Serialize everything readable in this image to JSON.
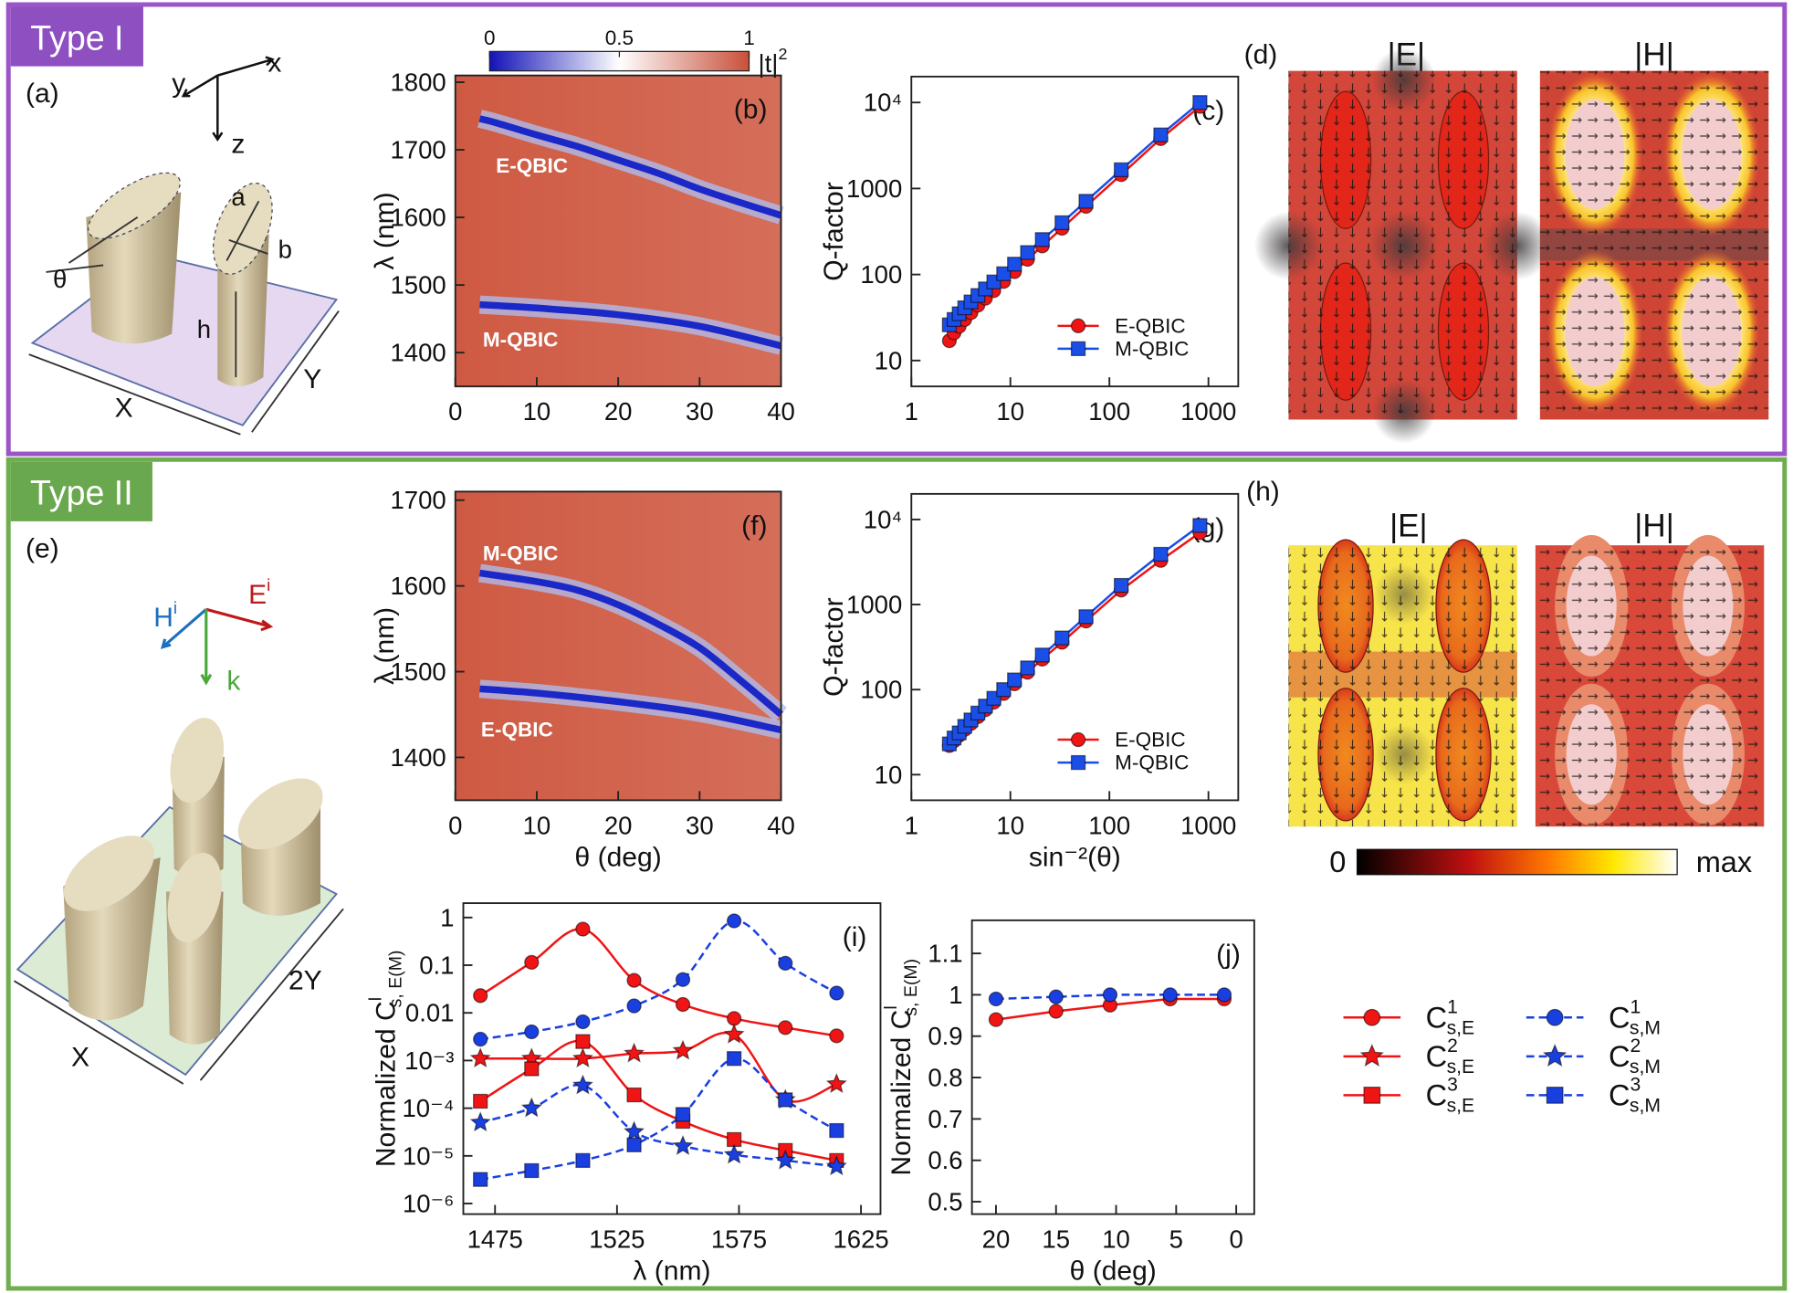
{
  "sections": [
    {
      "tag": "Type I"
    },
    {
      "tag": "Type II"
    }
  ],
  "schematics": {
    "a": {
      "label": "(a)",
      "axes": [
        "x",
        "y",
        "z"
      ],
      "dims": [
        "a",
        "b",
        "θ",
        "h",
        "X",
        "Y"
      ]
    },
    "e": {
      "label": "(e)",
      "field": [
        {
          "text": "H",
          "sup": "i"
        },
        {
          "text": "E",
          "sup": "i"
        },
        {
          "text": "k"
        }
      ],
      "dims": [
        "X",
        "2Y"
      ]
    }
  },
  "field_maps": [
    {
      "label": "(d)",
      "titles": [
        "|E|",
        "|H|"
      ]
    },
    {
      "label": "(h)",
      "titles": [
        "|E|",
        "|H|"
      ]
    }
  ],
  "field_colorbar": {
    "min_label": "0",
    "max_label": "max"
  },
  "chart_data": [
    {
      "type": "heatmap",
      "label": "(b)",
      "ylabel": "λ (nm)",
      "xlim": [
        0,
        40
      ],
      "xticks": [
        0,
        10,
        20,
        30,
        40
      ],
      "ylim": [
        1350,
        1810
      ],
      "yticks": [
        1400,
        1500,
        1600,
        1700,
        1800
      ],
      "background_color": "#cf5a43",
      "band_color": "#1b28c8",
      "series": [
        {
          "name": "E-QBIC",
          "x": [
            3,
            5,
            10,
            15,
            20,
            25,
            30,
            35,
            40
          ],
          "values": [
            1746,
            1740,
            1722,
            1705,
            1685,
            1665,
            1642,
            1622,
            1603
          ]
        },
        {
          "name": "M-QBIC",
          "x": [
            3,
            10,
            20,
            30,
            40
          ],
          "values": [
            1471,
            1466,
            1456,
            1439,
            1410
          ]
        }
      ],
      "colorbar": {
        "clim": [
          0,
          1
        ],
        "ticks": [
          0,
          0.5,
          1
        ],
        "label": "|t|",
        "label_sup": "2",
        "colors": [
          "#1212b8",
          "#ffffff",
          "#c8503a"
        ]
      }
    },
    {
      "type": "line",
      "label": "(c)",
      "ylabel": "Q-factor",
      "xscale": "log",
      "yscale": "log",
      "xlim": [
        1,
        2000
      ],
      "xticks": [
        1,
        10,
        100,
        1000
      ],
      "ylim": [
        5,
        20000
      ],
      "yticks": [
        10,
        100,
        1000,
        {
          "value": 10000,
          "label": "10⁴"
        }
      ],
      "legend": "lower right",
      "x": [
        2.42,
        2.7,
        3.04,
        3.46,
        4,
        4.7,
        5.6,
        6.8,
        8.55,
        11,
        14.9,
        21,
        33.2,
        58,
        131.6,
        330,
        821
      ],
      "series": [
        {
          "name": "E-QBIC",
          "color": "#f01414",
          "marker": "circle",
          "values": [
            17,
            21,
            25,
            30,
            36,
            44,
            53,
            65,
            83,
            108,
            150,
            215,
            345,
            620,
            1450,
            3800,
            9000
          ]
        },
        {
          "name": "M-QBIC",
          "color": "#1a4ee6",
          "marker": "square",
          "values": [
            26,
            30,
            35,
            41,
            48,
            57,
            68,
            82,
            102,
            132,
            180,
            255,
            400,
            710,
            1650,
            4200,
            10000
          ]
        }
      ]
    },
    {
      "type": "heatmap",
      "label": "(f)",
      "ylabel": "λ (nm)",
      "xlabel": "θ (deg)",
      "xlim": [
        0,
        40
      ],
      "xticks": [
        0,
        10,
        20,
        30,
        40
      ],
      "ylim": [
        1350,
        1710
      ],
      "yticks": [
        1400,
        1500,
        1600,
        1700
      ],
      "background_color": "#cf5a43",
      "band_color": "#1b28c8",
      "series": [
        {
          "name": "M-QBIC",
          "x": [
            3,
            10,
            15,
            20,
            25,
            30,
            35,
            40
          ],
          "values": [
            1615,
            1605,
            1595,
            1578,
            1555,
            1528,
            1490,
            1450
          ]
        },
        {
          "name": "E-QBIC",
          "x": [
            3,
            10,
            20,
            30,
            40
          ],
          "values": [
            1480,
            1475,
            1465,
            1452,
            1432
          ]
        }
      ]
    },
    {
      "type": "line",
      "label": "(g)",
      "ylabel": "Q-factor",
      "xlabel": "sin⁻²(θ)",
      "xscale": "log",
      "yscale": "log",
      "xlim": [
        1,
        2000
      ],
      "xticks": [
        1,
        10,
        100,
        1000
      ],
      "ylim": [
        5,
        20000
      ],
      "yticks": [
        10,
        100,
        1000,
        {
          "value": 10000,
          "label": "10⁴"
        }
      ],
      "legend": "lower right",
      "x": [
        2.42,
        2.7,
        3.04,
        3.46,
        4,
        4.7,
        5.6,
        6.8,
        8.55,
        11,
        14.9,
        21,
        33.2,
        58,
        131.6,
        330,
        821
      ],
      "series": [
        {
          "name": "E-QBIC",
          "color": "#f01414",
          "marker": "circle",
          "values": [
            22,
            25,
            29,
            34,
            40,
            48,
            58,
            71,
            90,
            117,
            160,
            228,
            360,
            640,
            1480,
            3300,
            7000
          ]
        },
        {
          "name": "M-QBIC",
          "color": "#1a4ee6",
          "marker": "square",
          "values": [
            23,
            27,
            31,
            37,
            44,
            53,
            64,
            79,
            100,
            130,
            180,
            255,
            405,
            720,
            1680,
            3900,
            8500
          ]
        }
      ]
    },
    {
      "type": "line",
      "label": "(i)",
      "xlabel": "λ (nm)",
      "ylabel": "Normalized C",
      "ylabel_sup": "l",
      "ylabel_sub": "s, E(M)",
      "yscale": "log",
      "smooth": true,
      "xlim": [
        1462,
        1633
      ],
      "xticks": [
        1475,
        1525,
        1575,
        1625
      ],
      "ylim": [
        6e-07,
        2
      ],
      "yticks": [
        1,
        0.1,
        0.01,
        {
          "value": 0.001,
          "label": "10⁻³"
        },
        {
          "value": 0.0001,
          "label": "10⁻⁴"
        },
        {
          "value": 1e-05,
          "label": "10⁻⁵"
        },
        {
          "value": 1e-06,
          "label": "10⁻⁶"
        }
      ],
      "legend": "outside right",
      "x": [
        1469,
        1490,
        1511,
        1532,
        1552,
        1573,
        1594,
        1615
      ],
      "series": [
        {
          "name": "C",
          "sup": "1",
          "sub": "s,E",
          "color": "#f01414",
          "marker": "circle",
          "dash": false,
          "values": [
            0.023,
            0.115,
            0.57,
            0.048,
            0.015,
            0.0076,
            0.0049,
            0.0033
          ]
        },
        {
          "name": "C",
          "sup": "2",
          "sub": "s,E",
          "color": "#f01414",
          "marker": "star",
          "dash": false,
          "values": [
            0.0011,
            0.0011,
            0.0011,
            0.0014,
            0.0016,
            0.0035,
            0.00015,
            0.00032
          ]
        },
        {
          "name": "C",
          "sup": "3",
          "sub": "s,E",
          "color": "#f01414",
          "marker": "square",
          "dash": false,
          "values": [
            0.00014,
            0.00067,
            0.0025,
            0.00019,
            5.3e-05,
            2.2e-05,
            1.3e-05,
            8e-06
          ]
        },
        {
          "name": "C",
          "sup": "1",
          "sub": "s,M",
          "color": "#1a3fe0",
          "marker": "circle",
          "dash": true,
          "values": [
            0.0028,
            0.004,
            0.0065,
            0.014,
            0.05,
            0.85,
            0.11,
            0.026
          ]
        },
        {
          "name": "C",
          "sup": "2",
          "sub": "s,M",
          "color": "#1a3fe0",
          "marker": "star",
          "dash": true,
          "values": [
            5e-05,
            0.0001,
            0.0003,
            3.2e-05,
            1.6e-05,
            1.05e-05,
            8e-06,
            6e-06
          ]
        },
        {
          "name": "C",
          "sup": "3",
          "sub": "s,M",
          "color": "#1a3fe0",
          "marker": "square",
          "dash": true,
          "values": [
            3.2e-06,
            4.9e-06,
            8e-06,
            1.7e-05,
            7.4e-05,
            0.0011,
            0.00015,
            3.4e-05
          ]
        }
      ]
    },
    {
      "type": "line",
      "label": "(j)",
      "xlabel": "θ (deg)",
      "ylabel": "Normalized C",
      "ylabel_sup": "l",
      "ylabel_sub": "s, E(M)",
      "xlim": [
        22,
        -1.5
      ],
      "xticks": [
        20,
        15,
        10,
        5,
        0
      ],
      "ylim": [
        0.47,
        1.18
      ],
      "yticks": [
        0.5,
        0.6,
        0.7,
        0.8,
        0.9,
        1,
        1.1
      ],
      "x": [
        20,
        15,
        10.5,
        5.5,
        1
      ],
      "series": [
        {
          "color": "#f01414",
          "marker": "circle",
          "dash": false,
          "values": [
            0.94,
            0.96,
            0.975,
            0.99,
            0.99
          ]
        },
        {
          "color": "#1a3fe0",
          "marker": "circle",
          "dash": true,
          "values": [
            0.99,
            0.995,
            1.0,
            1.0,
            1.0
          ]
        }
      ]
    }
  ]
}
